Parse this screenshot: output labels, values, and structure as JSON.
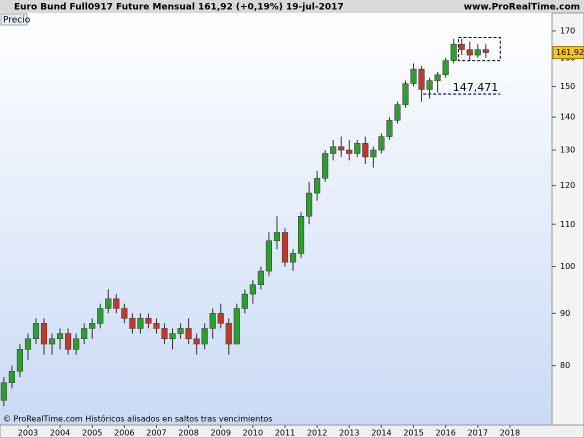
{
  "chart_data": {
    "type": "candlestick",
    "title": "Euro Bund Full0917 Future   Mensual   161,92 (+0,19%)   19-jul-2017",
    "source": "www.ProRealTime.com",
    "panel_label": "Precio",
    "footer": "© ProRealTime.com Históricos alisados en saltos tras vencimientos",
    "log_scale": true,
    "up_color": "#2e9e2e",
    "down_color": "#c0392b",
    "xlim": [
      2002.13,
      2019.31
    ],
    "xticks": [
      2003,
      2004,
      2005,
      2006,
      2007,
      2008,
      2009,
      2010,
      2011,
      2012,
      2013,
      2014,
      2015,
      2016,
      2017,
      2018
    ],
    "ylim": [
      70,
      177
    ],
    "yticks": [
      80,
      90,
      100,
      110,
      120,
      130,
      140,
      150,
      160,
      170
    ],
    "x": [
      2002.25,
      2002.5,
      2002.75,
      2003,
      2003.25,
      2003.5,
      2003.75,
      2004,
      2004.25,
      2004.5,
      2004.75,
      2005,
      2005.25,
      2005.5,
      2005.75,
      2006,
      2006.25,
      2006.5,
      2006.75,
      2007,
      2007.25,
      2007.5,
      2007.75,
      2008,
      2008.25,
      2008.5,
      2008.75,
      2009,
      2009.25,
      2009.5,
      2009.75,
      2010,
      2010.25,
      2010.5,
      2010.75,
      2011,
      2011.25,
      2011.5,
      2011.75,
      2012,
      2012.25,
      2012.5,
      2012.75,
      2013,
      2013.25,
      2013.5,
      2013.75,
      2014,
      2014.25,
      2014.5,
      2014.75,
      2015,
      2015.25,
      2015.5,
      2015.75,
      2016,
      2016.25,
      2016.5,
      2016.75,
      2017,
      2017.25
    ],
    "open": [
      74,
      77,
      79,
      83,
      85,
      88,
      84,
      85,
      86,
      83,
      85,
      87,
      88,
      91,
      93,
      91,
      89,
      87,
      89,
      88,
      87,
      85,
      86,
      87,
      85,
      84,
      87,
      90,
      88,
      84,
      91,
      94,
      96,
      99,
      106,
      108,
      101,
      103,
      112,
      118,
      122,
      129,
      131,
      130,
      129,
      132,
      128,
      130,
      134,
      139,
      144,
      151,
      156,
      149,
      152,
      154,
      159,
      165,
      163,
      161,
      163
    ],
    "high": [
      78,
      80,
      84,
      86,
      89,
      89,
      86,
      87,
      87,
      86,
      88,
      89,
      92,
      95,
      94,
      92,
      90,
      90,
      90,
      89,
      88,
      87,
      88,
      89,
      86,
      88,
      91,
      92,
      89,
      92,
      95,
      97,
      100,
      108,
      112,
      109,
      104,
      113,
      121,
      124,
      130,
      133,
      134,
      133,
      133,
      134,
      131,
      135,
      140,
      145,
      152,
      158,
      157,
      153,
      155,
      160,
      167,
      167,
      166,
      165,
      165
    ],
    "low": [
      73,
      76,
      78,
      81,
      84,
      82,
      82,
      83,
      82,
      82,
      84,
      85,
      87,
      90,
      90,
      88,
      86,
      86,
      87,
      86,
      84,
      83,
      85,
      84,
      82,
      83,
      85,
      87,
      82,
      84,
      90,
      92,
      95,
      98,
      104,
      100,
      99,
      102,
      110,
      116,
      121,
      127,
      128,
      127,
      128,
      126,
      125,
      129,
      133,
      138,
      143,
      150,
      145,
      146,
      148,
      153,
      158,
      161,
      159,
      160,
      160
    ],
    "close": [
      77,
      79,
      83,
      85,
      88,
      84,
      85,
      86,
      83,
      85,
      87,
      88,
      91,
      93,
      91,
      89,
      87,
      89,
      88,
      87,
      85,
      86,
      87,
      85,
      84,
      87,
      90,
      88,
      84,
      91,
      94,
      96,
      99,
      106,
      108,
      101,
      103,
      112,
      118,
      122,
      129,
      131,
      130,
      129,
      132,
      128,
      130,
      134,
      139,
      144,
      151,
      156,
      149,
      152,
      154,
      159,
      165,
      163,
      161,
      163,
      161.92
    ],
    "last_price": {
      "value": 161.92,
      "label": "161,92"
    },
    "level_line": {
      "value": 147.471,
      "label": "147,471",
      "x": [
        2015.3,
        2017.7
      ],
      "color": "#1a2fb0"
    },
    "box": {
      "x": [
        2016.4,
        2017.7
      ],
      "y": [
        159,
        167.5
      ]
    }
  }
}
